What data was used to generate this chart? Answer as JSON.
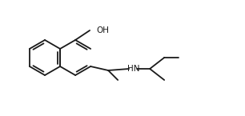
{
  "background_color": "#ffffff",
  "line_color": "#1a1a1a",
  "line_width": 1.3,
  "text_color": "#1a1a1a",
  "font_size": 7.5,
  "figsize": [
    3.06,
    1.45
  ],
  "dpi": 100
}
